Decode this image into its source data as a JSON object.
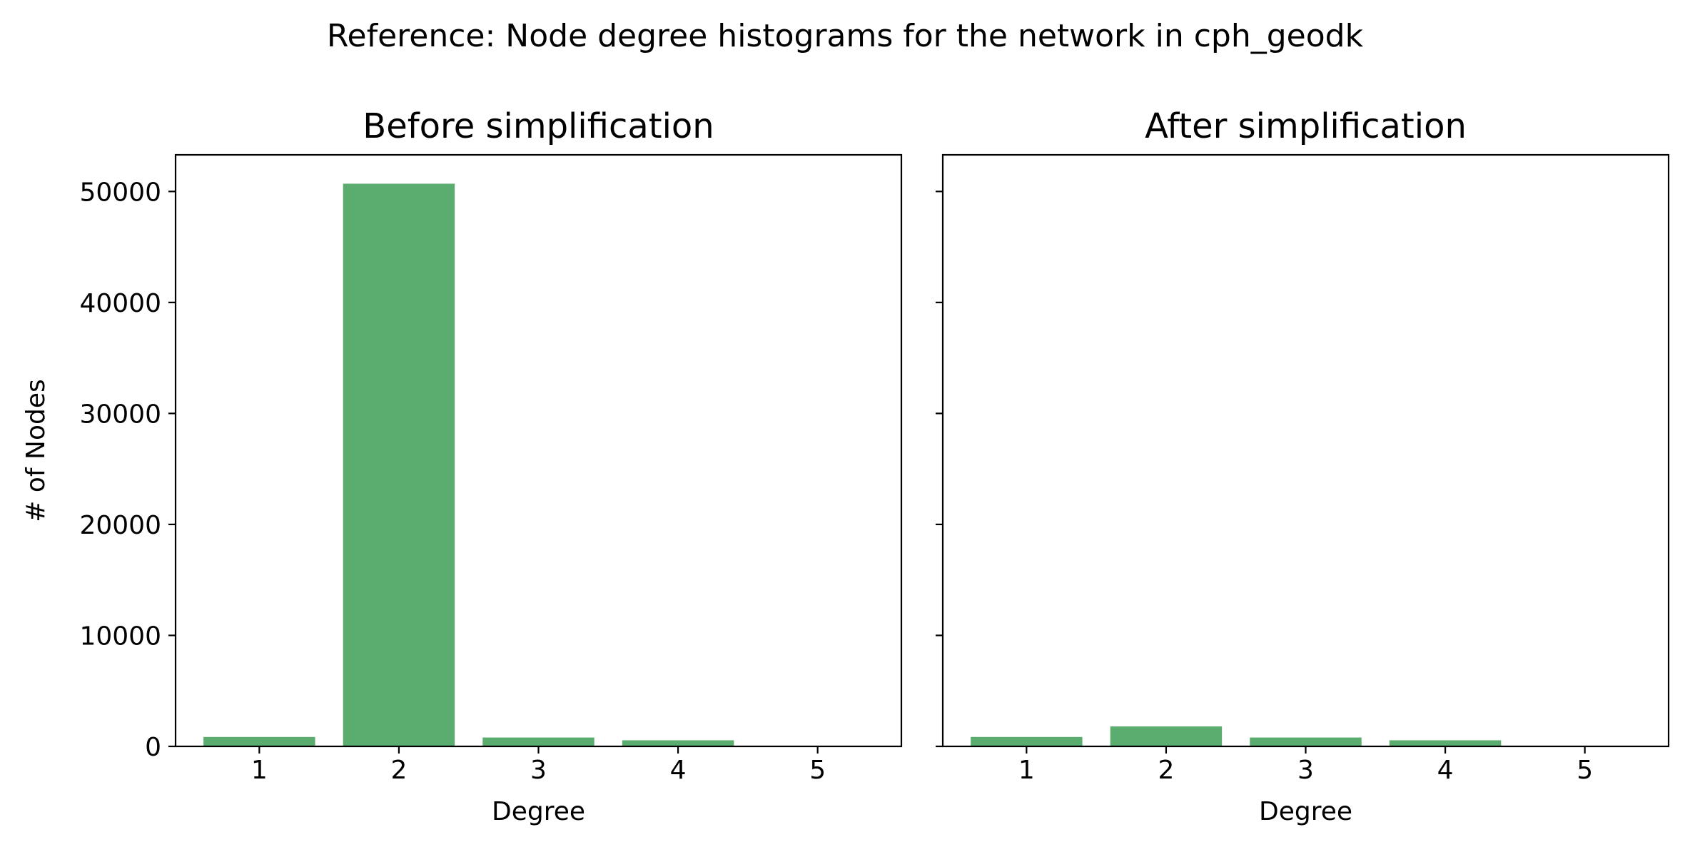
{
  "figure": {
    "suptitle": "Reference: Node degree histograms for the network in cph_geodk"
  },
  "chart_data": [
    {
      "type": "bar",
      "title": "Before simplification",
      "xlabel": "Degree",
      "ylabel": "# of Nodes",
      "categories": [
        "1",
        "2",
        "3",
        "4",
        "5"
      ],
      "values": [
        850,
        50700,
        800,
        550,
        0
      ],
      "ylim": [
        0,
        53300
      ],
      "yticks": [
        0,
        10000,
        20000,
        30000,
        40000,
        50000
      ],
      "bar_color": "#5aad6e",
      "grid": false
    },
    {
      "type": "bar",
      "title": "After simplification",
      "xlabel": "Degree",
      "ylabel": "",
      "categories": [
        "1",
        "2",
        "3",
        "4",
        "5"
      ],
      "values": [
        850,
        1800,
        800,
        550,
        0
      ],
      "ylim": [
        0,
        53300
      ],
      "yticks": [
        0,
        10000,
        20000,
        30000,
        40000,
        50000
      ],
      "show_ytick_labels": false,
      "bar_color": "#5aad6e",
      "grid": false
    }
  ]
}
